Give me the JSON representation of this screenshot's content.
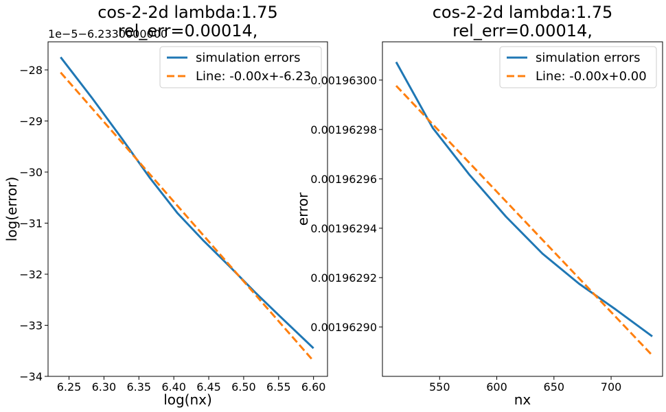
{
  "chart_data": [
    {
      "type": "line",
      "title_lines": [
        "cos-2-2d lambda:1.75",
        "rel_err=0.00014,"
      ],
      "xlabel": "log(nx)",
      "ylabel": "log(error)",
      "offset_label": "1e−5−6.2330000000",
      "xlim": [
        6.22,
        6.62
      ],
      "ylim": [
        -34.0,
        -27.45
      ],
      "xticks": [
        6.25,
        6.3,
        6.35,
        6.4,
        6.45,
        6.5,
        6.55,
        6.6
      ],
      "xtick_labels": [
        "6.25",
        "6.30",
        "6.35",
        "6.40",
        "6.45",
        "6.50",
        "6.55",
        "6.60"
      ],
      "yticks": [
        -34,
        -33,
        -32,
        -31,
        -30,
        -29,
        -28
      ],
      "ytick_labels": [
        "−34",
        "−33",
        "−32",
        "−31",
        "−30",
        "−29",
        "−28"
      ],
      "legend_position": "top-right",
      "series": [
        {
          "name": "simulation errors",
          "color": "#1f77b4",
          "style": "solid",
          "x": [
            6.238,
            6.283,
            6.326,
            6.365,
            6.405,
            6.443,
            6.48,
            6.516,
            6.55,
            6.6
          ],
          "y": [
            -27.75,
            -28.55,
            -29.35,
            -30.1,
            -30.8,
            -31.35,
            -31.85,
            -32.35,
            -32.8,
            -33.45
          ]
        },
        {
          "name": "Line: -0.00x+-6.23",
          "color": "#ff7f0e",
          "style": "dashed",
          "x": [
            6.238,
            6.6
          ],
          "y": [
            -28.05,
            -33.7
          ]
        }
      ]
    },
    {
      "type": "line",
      "title_lines": [
        "cos-2-2d lambda:1.75",
        "rel_err=0.00014,"
      ],
      "xlabel": "nx",
      "ylabel": "error",
      "xlim": [
        500,
        745
      ],
      "ylim": [
        0.00196288,
        0.0019630155
      ],
      "xticks": [
        550,
        600,
        650,
        700
      ],
      "xtick_labels": [
        "550",
        "600",
        "650",
        "700"
      ],
      "yticks": [
        0.0019629,
        0.00196292,
        0.00196294,
        0.00196296,
        0.00196298,
        0.001963
      ],
      "ytick_labels": [
        "0.00196290",
        "0.00196292",
        "0.00196294",
        "0.00196296",
        "0.00196298",
        "0.00196300"
      ],
      "legend_position": "top-right",
      "series": [
        {
          "name": "simulation errors",
          "color": "#1f77b4",
          "style": "solid",
          "x": [
            512,
            544,
            576,
            608,
            640,
            672,
            704,
            736
          ],
          "y": [
            0.0019630073,
            0.0019629806,
            0.0019629617,
            0.0019629447,
            0.0019629297,
            0.0019629175,
            0.0019629071,
            0.0019628962
          ]
        },
        {
          "name": "Line: -0.00x+0.00",
          "color": "#ff7f0e",
          "style": "dashed",
          "x": [
            512,
            736
          ],
          "y": [
            0.0019629977,
            0.0019628885
          ]
        }
      ]
    }
  ]
}
